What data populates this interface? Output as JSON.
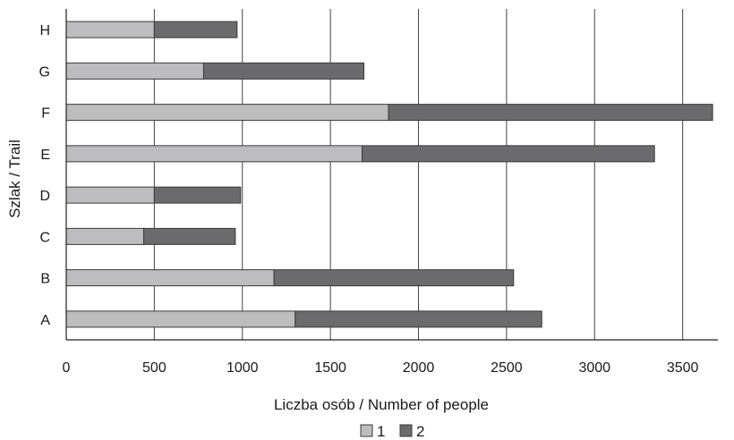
{
  "chart_data": {
    "type": "bar",
    "orientation": "horizontal",
    "stacked": true,
    "categories": [
      "A",
      "B",
      "C",
      "D",
      "E",
      "F",
      "G",
      "H"
    ],
    "series": [
      {
        "name": "1",
        "color": "#bdbdbf",
        "values": [
          1300,
          1180,
          440,
          500,
          1680,
          1830,
          780,
          500
        ]
      },
      {
        "name": "2",
        "color": "#6b6b6e",
        "values": [
          1400,
          1360,
          520,
          490,
          1660,
          1840,
          910,
          470
        ]
      }
    ],
    "xlabel": "Liczba osób / Number of people",
    "ylabel": "Szlak / Trail",
    "xlim": [
      0,
      3700
    ],
    "xticks": [
      0,
      500,
      1000,
      1500,
      2000,
      2500,
      3000,
      3500
    ],
    "grid": "vertical",
    "legend": "bottom-center"
  }
}
